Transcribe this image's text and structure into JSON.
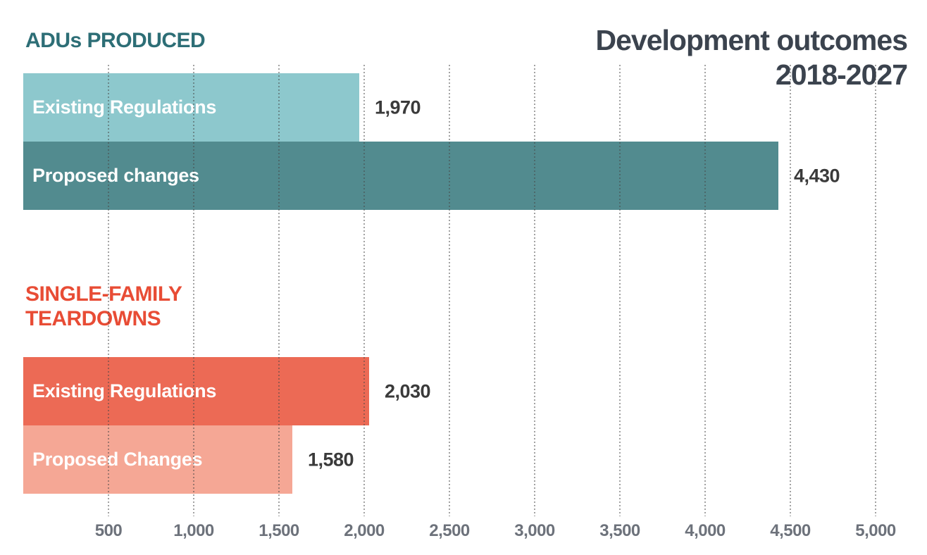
{
  "chart_data": {
    "type": "bar",
    "orientation": "horizontal",
    "title": "Development outcomes",
    "subtitle": "2018-2027",
    "xlim": [
      0,
      5000
    ],
    "gridlines": "dotted-vertical",
    "legend": "none",
    "x_ticks": [
      {
        "value": 500,
        "label": "500"
      },
      {
        "value": 1000,
        "label": "1,000"
      },
      {
        "value": 1500,
        "label": "1,500"
      },
      {
        "value": 2000,
        "label": "2,000"
      },
      {
        "value": 2500,
        "label": "2,500"
      },
      {
        "value": 3000,
        "label": "3,000"
      },
      {
        "value": 3500,
        "label": "3,500"
      },
      {
        "value": 4000,
        "label": "4,000"
      },
      {
        "value": 4500,
        "label": "4,500"
      },
      {
        "value": 5000,
        "label": "5,000"
      }
    ],
    "groups": [
      {
        "name": "ADUs PRODUCED",
        "header_color": "#2d6e76",
        "bars": [
          {
            "label": "Existing Regulations",
            "value": 1970,
            "value_label": "1,970",
            "color": "#8dc8cd"
          },
          {
            "label": "Proposed changes",
            "value": 4430,
            "value_label": "4,430",
            "color": "#528b8f"
          }
        ]
      },
      {
        "name": "SINGLE-FAMILY\nTEARDOWNS",
        "header_color": "#e84c35",
        "bars": [
          {
            "label": "Existing Regulations",
            "value": 2030,
            "value_label": "2,030",
            "color": "#ec6a55"
          },
          {
            "label": "Proposed Changes",
            "value": 1580,
            "value_label": "1,580",
            "color": "#f5a795"
          }
        ]
      }
    ],
    "colors": {
      "title_text": "#3b434e",
      "value_text": "#3a3a3a",
      "axis_text": "#6d727b",
      "gridline": "#a5a5a5",
      "background": "#ffffff"
    }
  }
}
